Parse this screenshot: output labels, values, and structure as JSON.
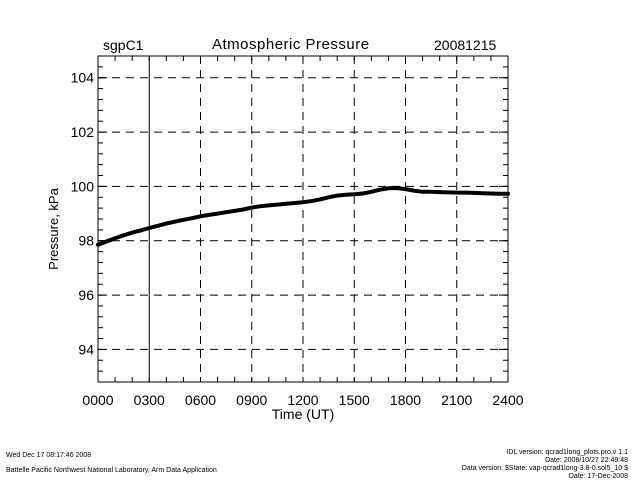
{
  "header": {
    "site": "sgpC1",
    "title": "Atmospheric Pressure",
    "date": "20081215"
  },
  "chart_data": {
    "type": "line",
    "title": "Atmospheric Pressure",
    "xlabel": "Time (UT)",
    "ylabel": "Pressure, kPa",
    "xlim": [
      0,
      24
    ],
    "ylim": [
      92.8,
      104.8
    ],
    "x_tick_values": [
      0,
      3,
      6,
      9,
      12,
      15,
      18,
      21,
      24
    ],
    "x_tick_labels": [
      "0000",
      "0300",
      "0600",
      "0900",
      "1200",
      "1500",
      "1800",
      "2100",
      "2400"
    ],
    "y_tick_values": [
      94,
      96,
      98,
      100,
      102,
      104
    ],
    "y_tick_labels": [
      "94",
      "96",
      "98",
      "100",
      "102",
      "104"
    ],
    "grid": true,
    "series": [
      {
        "name": "Pressure",
        "x": [
          0,
          0.5,
          1,
          1.5,
          2,
          2.5,
          3,
          3.5,
          4,
          4.5,
          5,
          5.5,
          6,
          6.5,
          7,
          7.5,
          8,
          8.5,
          9,
          9.5,
          10,
          10.5,
          11,
          11.5,
          12,
          12.5,
          13,
          13.5,
          14,
          14.5,
          15,
          15.5,
          16,
          16.5,
          17,
          17.5,
          18,
          18.5,
          19,
          19.5,
          20,
          20.5,
          21,
          21.5,
          22,
          22.5,
          23,
          23.5,
          24
        ],
        "values": [
          97.85,
          97.97,
          98.09,
          98.2,
          98.3,
          98.38,
          98.47,
          98.55,
          98.63,
          98.7,
          98.77,
          98.83,
          98.9,
          98.95,
          99.0,
          99.05,
          99.1,
          99.15,
          99.22,
          99.27,
          99.3,
          99.33,
          99.36,
          99.39,
          99.42,
          99.46,
          99.52,
          99.6,
          99.66,
          99.69,
          99.71,
          99.74,
          99.8,
          99.88,
          99.93,
          99.94,
          99.9,
          99.84,
          99.8,
          99.8,
          99.79,
          99.78,
          99.77,
          99.77,
          99.76,
          99.75,
          99.74,
          99.73,
          99.73
        ]
      }
    ]
  },
  "footer": {
    "left_timestamp": "Wed Dec 17 08:17:46 2008",
    "left_org": "Battelle Pacific Northwest National Laboratory, Arm Data Application",
    "right_line1": "IDL version: qcrad1long_plots.pro,v 1.1",
    "right_line2": "Date: 2008/10/27 22:49:48",
    "right_line3": "Data version: $State: vap-qcrad1long-3.8-0.sol5_10 $",
    "right_line4": "Date: 17-Dec-2008"
  }
}
